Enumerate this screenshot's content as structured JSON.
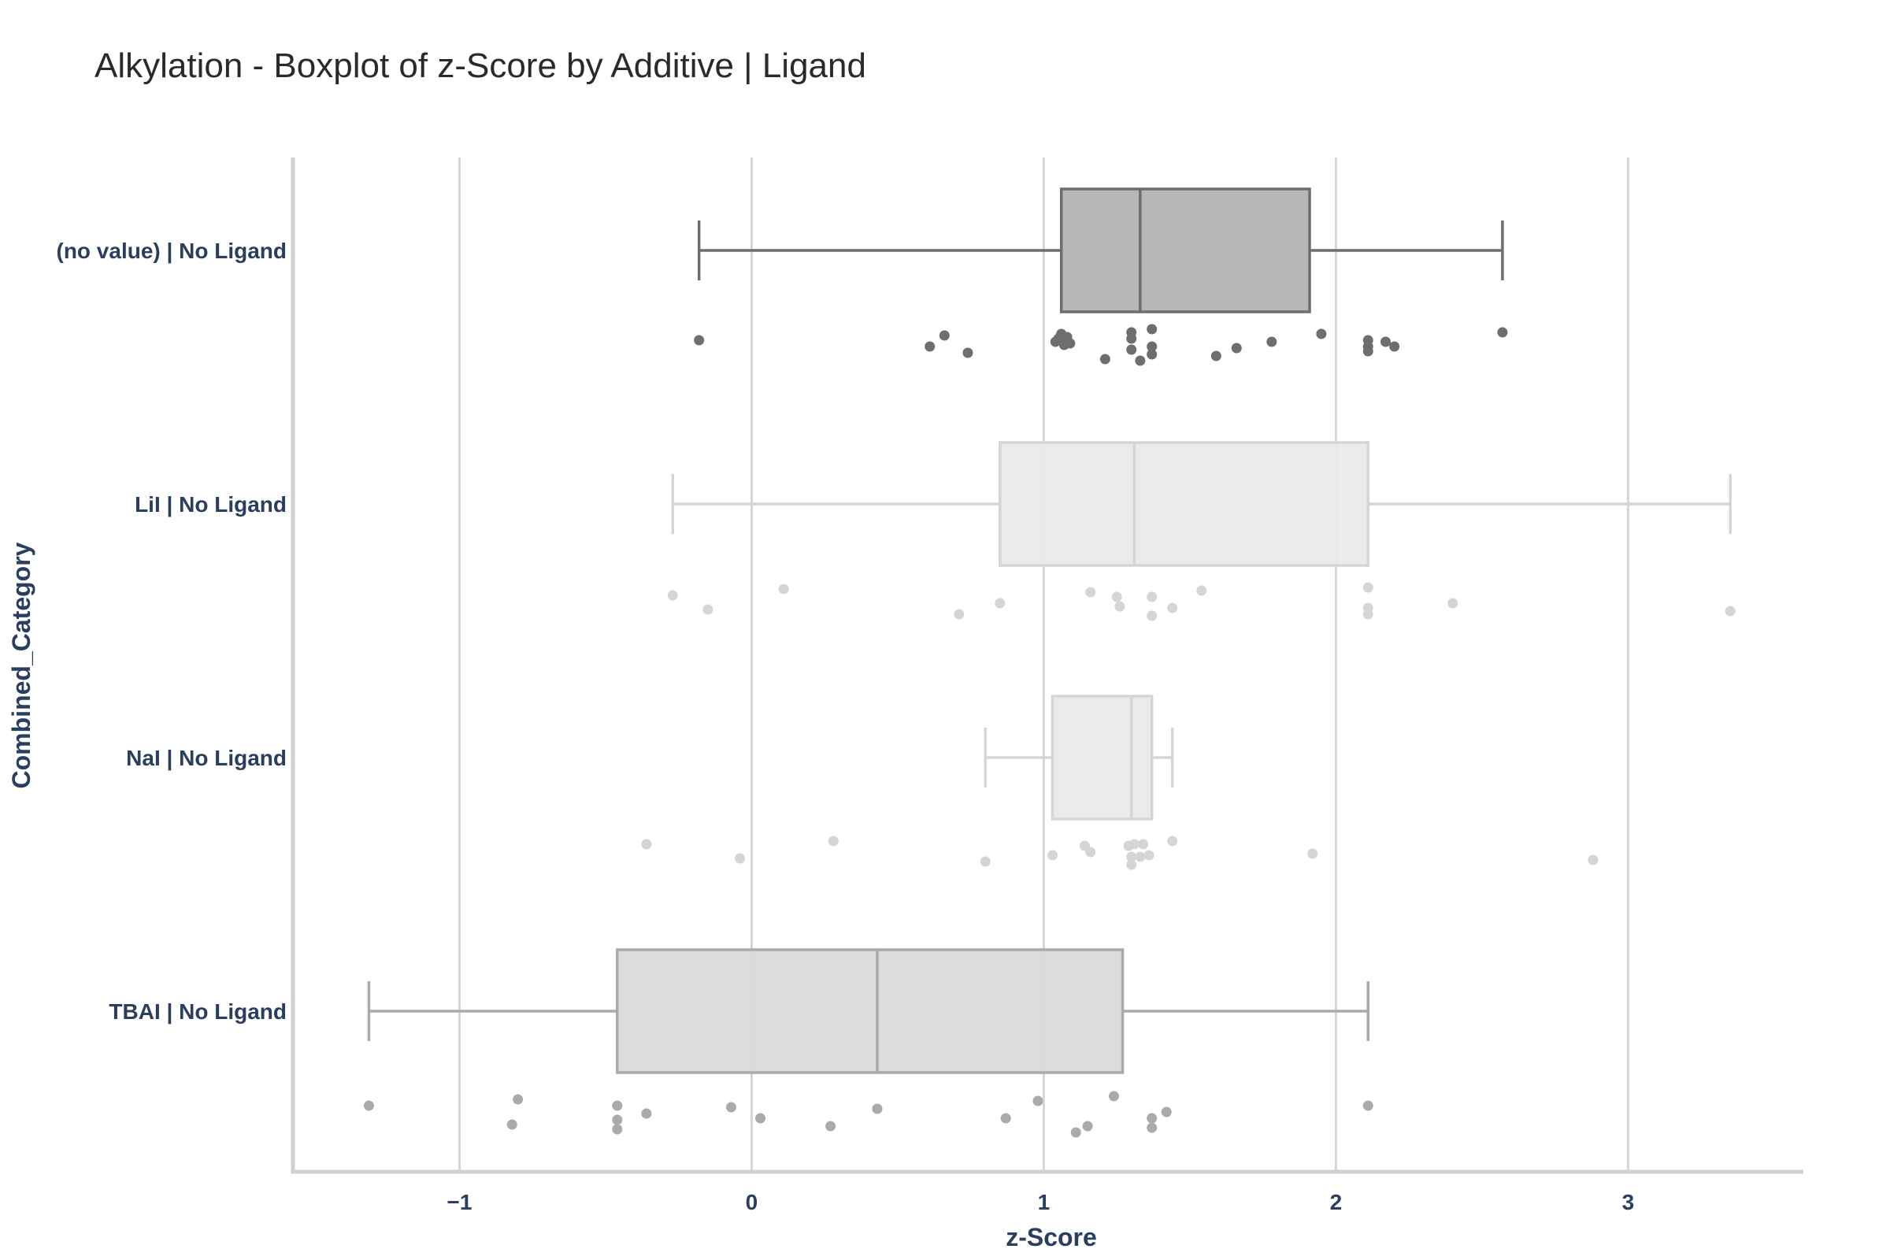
{
  "chart_data": {
    "type": "box",
    "title": "Alkylation - Boxplot of z-Score by Additive | Ligand",
    "xlabel": "z-Score",
    "ylabel": "Combined_Category",
    "xlim": [
      -1.57,
      3.6
    ],
    "x_ticks": [
      -1,
      0,
      1,
      2,
      3
    ],
    "x_tick_labels": [
      "−1",
      "0",
      "1",
      "2",
      "3"
    ],
    "grid": "vertical",
    "orientation": "horizontal",
    "categories": [
      "(no value) | No Ligand",
      "LiI | No Ligand",
      "NaI | No Ligand",
      "TBAI | No Ligand"
    ],
    "series": [
      {
        "category": "(no value) | No Ligand",
        "color": "#6e6e6e",
        "fill": "#b3b3b3",
        "whisker_low": -0.18,
        "q1": 1.06,
        "median": 1.33,
        "q3": 1.91,
        "whisker_high": 2.57,
        "points": [
          [
            -0.18,
            0.5
          ],
          [
            0.61,
            0.9
          ],
          [
            0.66,
            0.2
          ],
          [
            0.74,
            1.3
          ],
          [
            1.04,
            0.6
          ],
          [
            1.05,
            0.4
          ],
          [
            1.06,
            0.1
          ],
          [
            1.07,
            0.8
          ],
          [
            1.08,
            0.3
          ],
          [
            1.09,
            0.7
          ],
          [
            1.21,
            1.7
          ],
          [
            1.3,
            0.0
          ],
          [
            1.3,
            0.4
          ],
          [
            1.3,
            1.1
          ],
          [
            1.33,
            1.8
          ],
          [
            1.37,
            -0.2
          ],
          [
            1.37,
            0.9
          ],
          [
            1.37,
            1.4
          ],
          [
            1.59,
            1.5
          ],
          [
            1.66,
            1.0
          ],
          [
            1.78,
            0.6
          ],
          [
            1.95,
            0.1
          ],
          [
            2.11,
            0.5
          ],
          [
            2.11,
            0.9
          ],
          [
            2.11,
            1.2
          ],
          [
            2.17,
            0.6
          ],
          [
            2.2,
            0.9
          ],
          [
            2.57,
            0.0
          ]
        ]
      },
      {
        "category": "LiI | No Ligand",
        "color": "#d5d5d5",
        "fill": "#e9e9e9",
        "whisker_low": -0.27,
        "q1": 0.85,
        "median": 1.31,
        "q3": 2.11,
        "whisker_high": 3.35,
        "points": [
          [
            -0.27,
            0.6
          ],
          [
            -0.15,
            1.5
          ],
          [
            0.11,
            0.2
          ],
          [
            0.71,
            1.8
          ],
          [
            0.85,
            1.1
          ],
          [
            1.16,
            0.4
          ],
          [
            1.25,
            0.7
          ],
          [
            1.26,
            1.3
          ],
          [
            1.37,
            0.7
          ],
          [
            1.37,
            1.9
          ],
          [
            1.44,
            1.4
          ],
          [
            1.54,
            0.3
          ],
          [
            2.11,
            0.1
          ],
          [
            2.11,
            1.4
          ],
          [
            2.11,
            1.8
          ],
          [
            2.4,
            1.1
          ],
          [
            3.35,
            1.6
          ]
        ]
      },
      {
        "category": "NaI | No Ligand",
        "color": "#d5d5d5",
        "fill": "#e9e9e9",
        "whisker_low": 0.8,
        "q1": 1.03,
        "median": 1.3,
        "q3": 1.37,
        "whisker_high": 1.44,
        "points": [
          [
            -0.36,
            0.3
          ],
          [
            -0.04,
            1.2
          ],
          [
            0.28,
            0.1
          ],
          [
            0.8,
            1.4
          ],
          [
            1.03,
            1.0
          ],
          [
            1.14,
            0.4
          ],
          [
            1.16,
            0.8
          ],
          [
            1.29,
            0.4
          ],
          [
            1.3,
            1.1
          ],
          [
            1.3,
            1.6
          ],
          [
            1.31,
            0.3
          ],
          [
            1.33,
            1.1
          ],
          [
            1.34,
            0.3
          ],
          [
            1.36,
            1.0
          ],
          [
            1.44,
            0.1
          ],
          [
            1.92,
            0.9
          ],
          [
            2.88,
            1.3
          ]
        ]
      },
      {
        "category": "TBAI | No Ligand",
        "color": "#aaaaaa",
        "fill": "#d9d9d9",
        "whisker_low": -1.31,
        "q1": -0.46,
        "median": 0.43,
        "q3": 1.27,
        "whisker_high": 2.11,
        "points": [
          [
            -1.31,
            0.8
          ],
          [
            -0.8,
            0.4
          ],
          [
            -0.82,
            2.0
          ],
          [
            -0.46,
            0.8
          ],
          [
            -0.46,
            1.7
          ],
          [
            -0.46,
            2.3
          ],
          [
            -0.36,
            1.3
          ],
          [
            -0.07,
            0.9
          ],
          [
            0.03,
            1.6
          ],
          [
            0.27,
            2.1
          ],
          [
            0.43,
            1.0
          ],
          [
            0.87,
            1.6
          ],
          [
            0.98,
            0.5
          ],
          [
            1.11,
            2.5
          ],
          [
            1.15,
            2.1
          ],
          [
            1.24,
            0.2
          ],
          [
            1.37,
            1.6
          ],
          [
            1.37,
            2.2
          ],
          [
            1.42,
            1.2
          ],
          [
            2.11,
            0.8
          ]
        ]
      }
    ]
  }
}
